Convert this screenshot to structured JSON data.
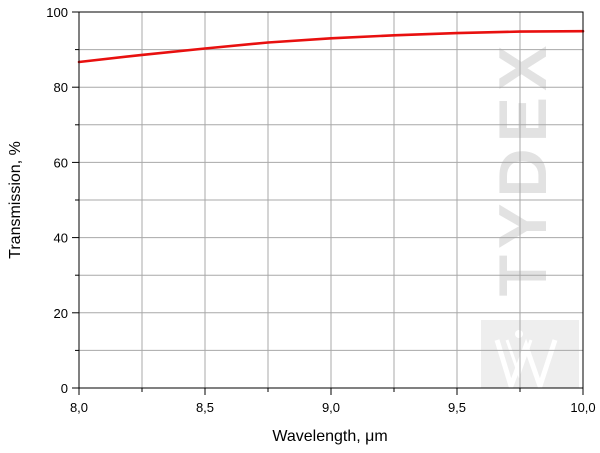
{
  "chart_data": {
    "type": "line",
    "title": "",
    "xlabel": "Wavelength, μm",
    "ylabel": "Transmission, %",
    "xlim": [
      8.0,
      10.0
    ],
    "ylim": [
      0,
      100
    ],
    "x_ticks": [
      8.0,
      8.5,
      9.0,
      9.5,
      10.0
    ],
    "x_tick_labels": [
      "8,0",
      "8,5",
      "9,0",
      "9,5",
      "10,0"
    ],
    "y_ticks": [
      0,
      20,
      40,
      60,
      80,
      100
    ],
    "y_tick_labels": [
      "0",
      "20",
      "40",
      "60",
      "80",
      "100"
    ],
    "grid": true,
    "legend": "none",
    "series": [
      {
        "color": "#e8100f",
        "x": [
          8.0,
          8.25,
          8.5,
          8.75,
          9.0,
          9.25,
          9.5,
          9.75,
          10.0
        ],
        "values": [
          86.7,
          88.6,
          90.3,
          91.9,
          93.0,
          93.8,
          94.4,
          94.8,
          94.9
        ]
      }
    ]
  },
  "watermark": {
    "text": "TYDEX"
  },
  "colors": {
    "grid": "#a8a8a8",
    "axis": "#000000",
    "watermark": "#e2e2e2"
  }
}
